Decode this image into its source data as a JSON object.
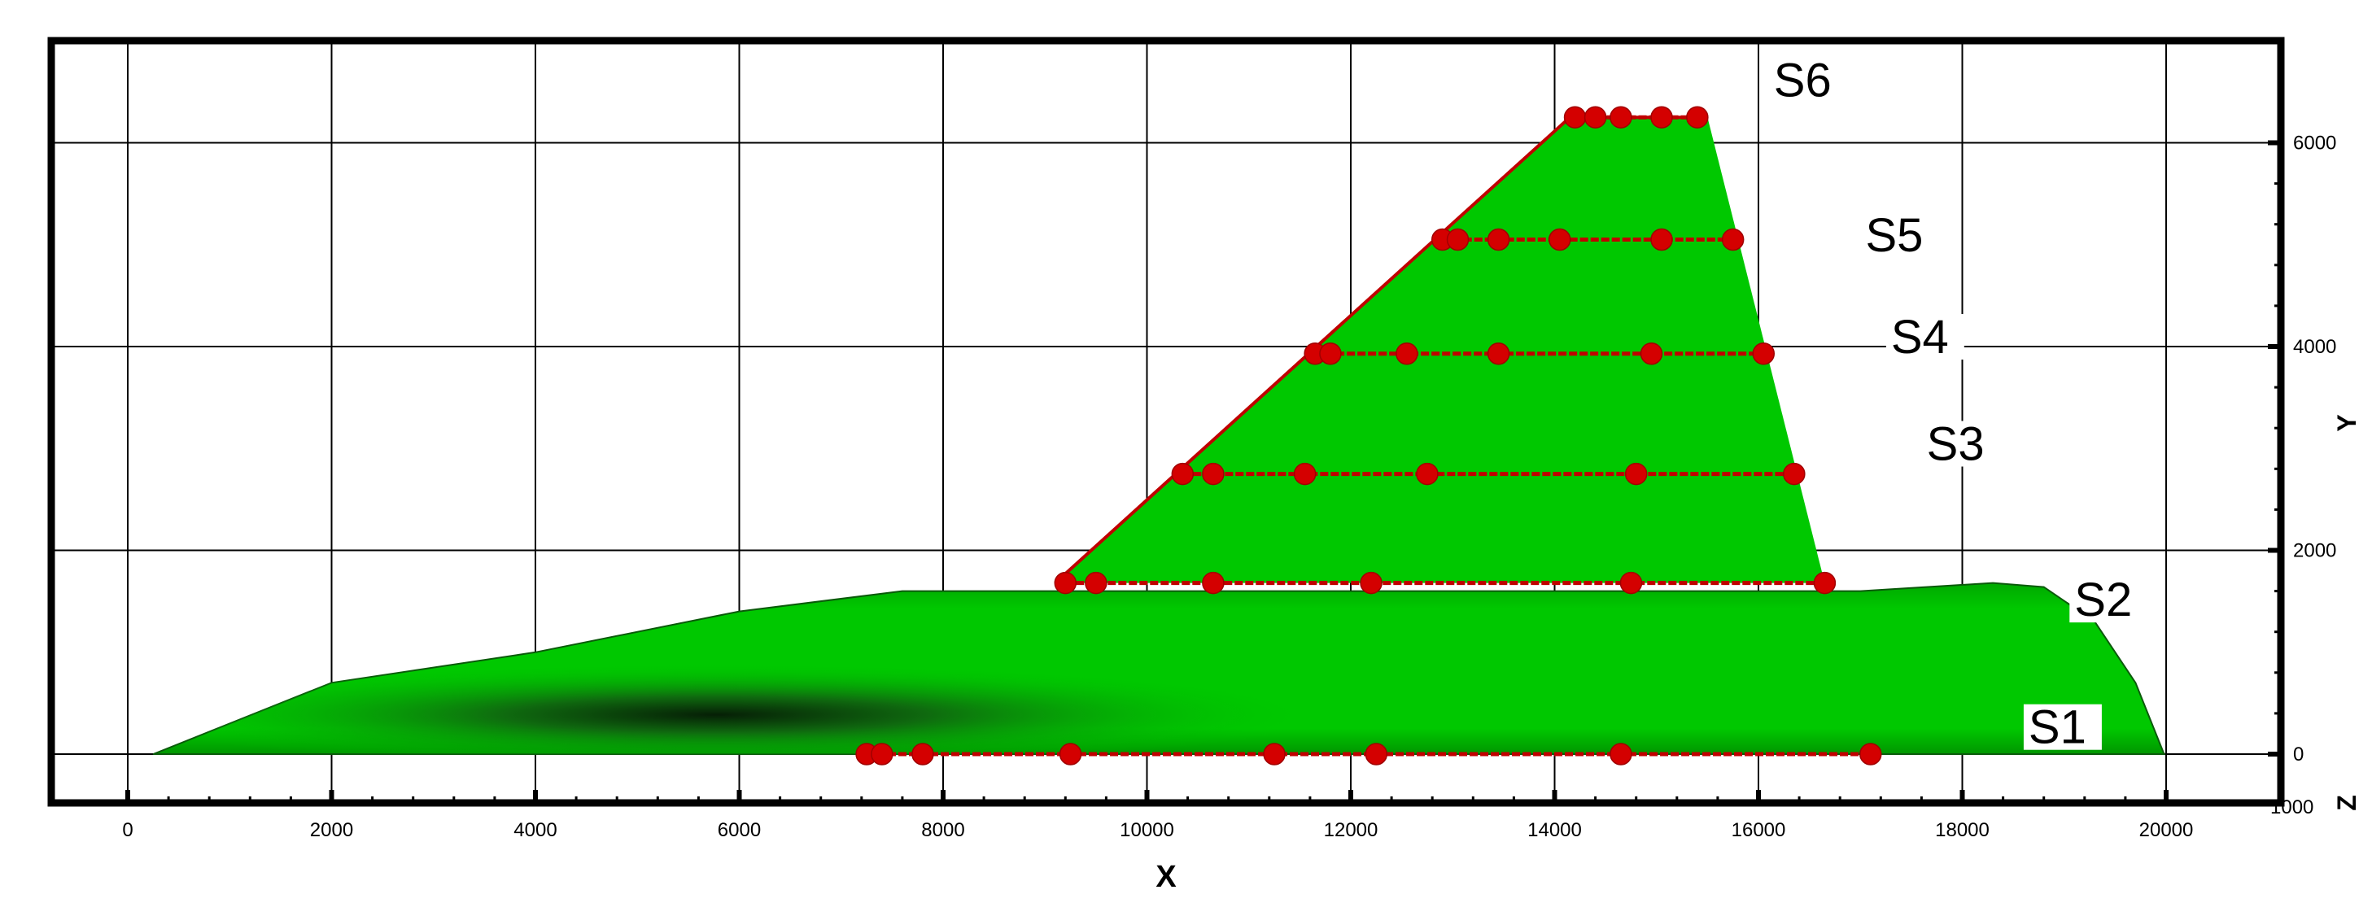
{
  "chart_data": {
    "type": "scatter",
    "title": "",
    "xlabel": "X",
    "ylabel": "Y",
    "zlabel": "Z",
    "xlim": [
      -800,
      21000
    ],
    "ylim": [
      -600,
      7000
    ],
    "x_ticks": [
      0,
      2000,
      4000,
      6000,
      8000,
      10000,
      12000,
      14000,
      16000,
      18000,
      20000
    ],
    "y_ticks": [
      0,
      2000,
      4000,
      6000
    ],
    "corner_label": "1000",
    "grid": true,
    "legend": "none",
    "colors": {
      "surface": "#00c800",
      "surface_shade": "#0a3f0a",
      "marker": "#d40000",
      "line": "#c00000",
      "frame": "#000000",
      "grid": "#000000"
    },
    "body_outline": [
      [
        250,
        0
      ],
      [
        2000,
        700
      ],
      [
        4000,
        1000
      ],
      [
        6000,
        1400
      ],
      [
        7600,
        1600
      ],
      [
        17000,
        1600
      ],
      [
        18300,
        1680
      ],
      [
        18800,
        1640
      ],
      [
        19300,
        1300
      ],
      [
        19700,
        700
      ],
      [
        19980,
        0
      ]
    ],
    "wing_outline": [
      [
        9100,
        1680
      ],
      [
        14150,
        6250
      ],
      [
        15500,
        6250
      ],
      [
        16650,
        1680
      ]
    ],
    "stations": [
      {
        "name": "S1",
        "y": 0,
        "label_x": 18650,
        "label_y": 170,
        "x": [
          7250,
          7400,
          7800,
          9250,
          11250,
          12250,
          14650,
          17100
        ]
      },
      {
        "name": "S2",
        "y": 1680,
        "label_x": 19100,
        "label_y": 1420,
        "x": [
          9200,
          9500,
          10650,
          12200,
          14750,
          16650
        ]
      },
      {
        "name": "S3",
        "y": 2750,
        "label_x": 17650,
        "label_y": 2950,
        "x": [
          10350,
          10650,
          11550,
          12750,
          14800,
          16350
        ]
      },
      {
        "name": "S4",
        "y": 3930,
        "label_x": 17300,
        "label_y": 4000,
        "x": [
          11650,
          11800,
          12550,
          13450,
          14950,
          16050
        ]
      },
      {
        "name": "S5",
        "y": 5050,
        "label_x": 17050,
        "label_y": 5000,
        "x": [
          12900,
          13050,
          13450,
          14050,
          15050,
          15750
        ]
      },
      {
        "name": "S6",
        "y": 6250,
        "label_x": 16150,
        "label_y": 6520,
        "x": [
          14200,
          14400,
          14650,
          15050,
          15400
        ]
      }
    ]
  }
}
